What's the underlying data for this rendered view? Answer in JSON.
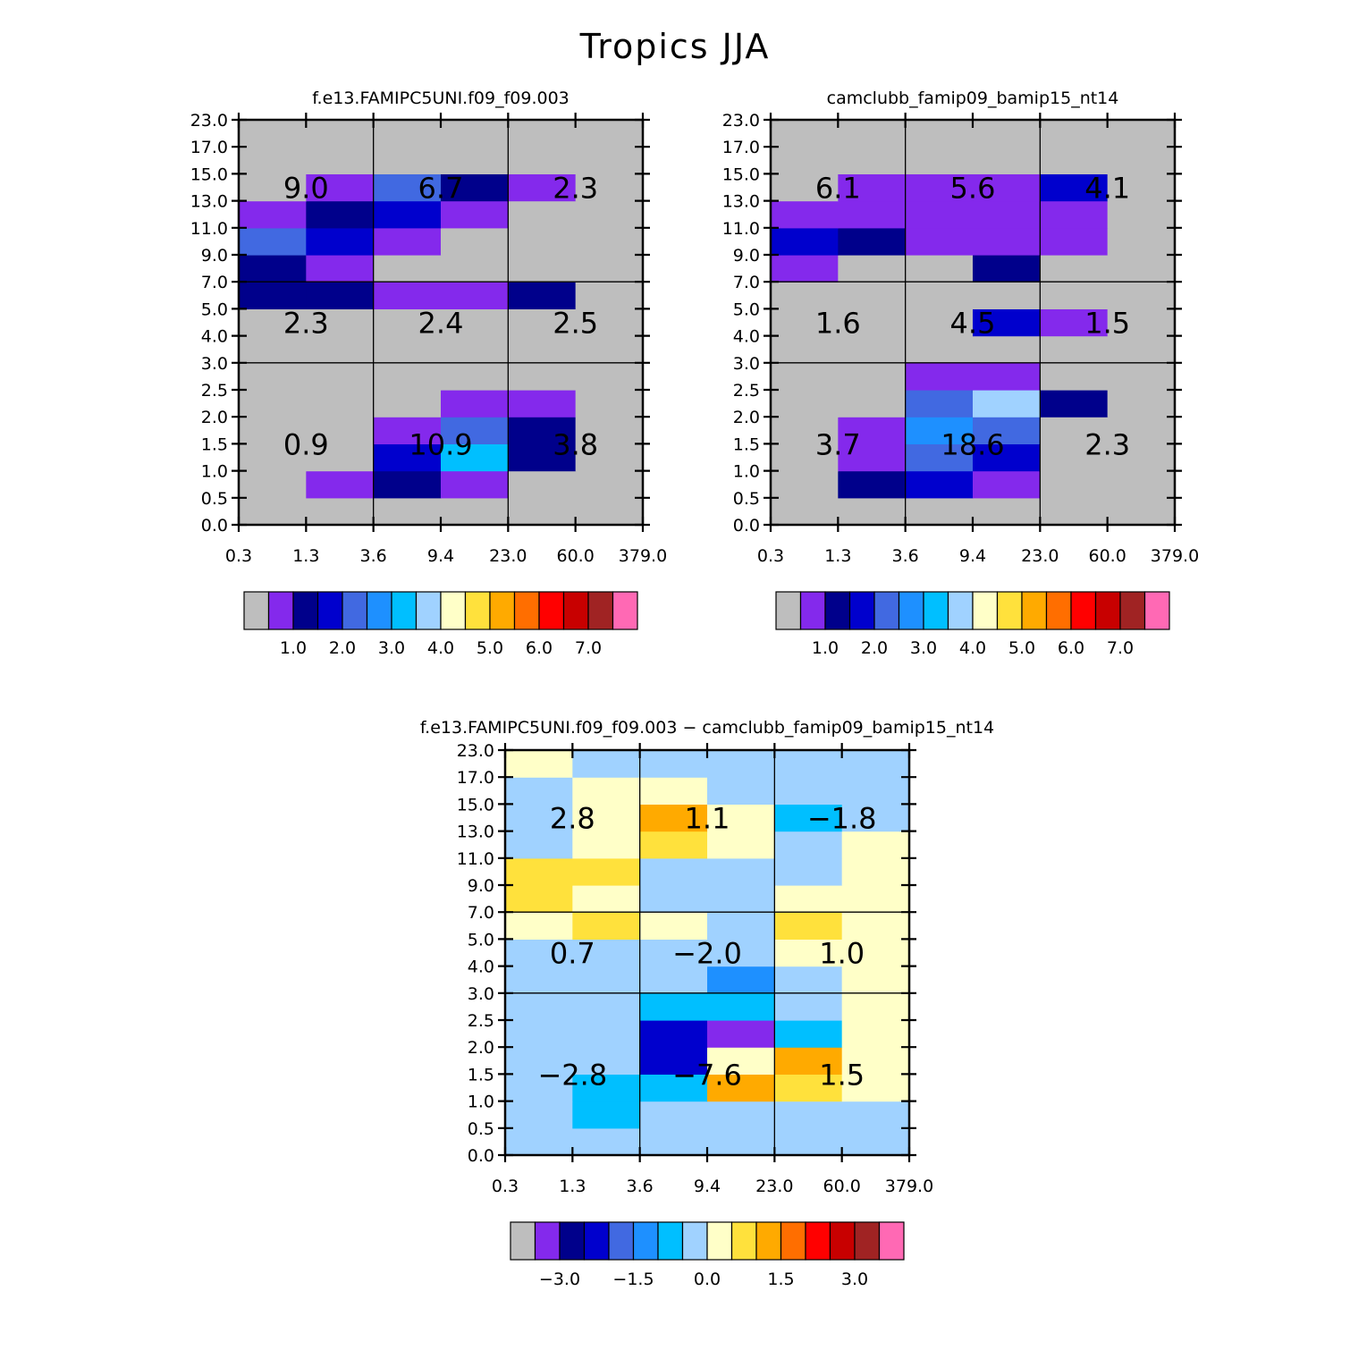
{
  "figure": {
    "title": "Tropics JJA"
  },
  "chart_data": [
    {
      "type": "heatmap",
      "title": "f.e13.FAMIPC5UNI.f09_f09.003",
      "x_tick_labels": [
        "0.3",
        "1.3",
        "3.6",
        "9.4",
        "23.0",
        "60.0",
        "379.0"
      ],
      "y_tick_labels": [
        "0.0",
        "0.5",
        "1.0",
        "1.5",
        "2.0",
        "2.5",
        "3.0",
        "4.0",
        "5.0",
        "7.0",
        "9.0",
        "11.0",
        "13.0",
        "15.0",
        "17.0",
        "23.0"
      ],
      "grid_values": [
        [
          0,
          0,
          0,
          0,
          0,
          0
        ],
        [
          0,
          1,
          2,
          1,
          0,
          0
        ],
        [
          0,
          0,
          3,
          6,
          2,
          0
        ],
        [
          0,
          0,
          1,
          4,
          2,
          0
        ],
        [
          0,
          0,
          0,
          1,
          1,
          0
        ],
        [
          0,
          0,
          0,
          0,
          0,
          0
        ],
        [
          0,
          0,
          0,
          0,
          0,
          0
        ],
        [
          0,
          0,
          0,
          0,
          0,
          0
        ],
        [
          2,
          2,
          1,
          1,
          2,
          0
        ],
        [
          2,
          1,
          0,
          0,
          0,
          0
        ],
        [
          4,
          3,
          1,
          0,
          0,
          0
        ],
        [
          1,
          2,
          3,
          1,
          0,
          0
        ],
        [
          0,
          1,
          4,
          2,
          1,
          0
        ],
        [
          0,
          0,
          0,
          0,
          0,
          0
        ],
        [
          0,
          0,
          0,
          0,
          0,
          0
        ]
      ],
      "section_totals": [
        {
          "col": 0,
          "row": 0,
          "value": "0.9"
        },
        {
          "col": 1,
          "row": 0,
          "value": "10.9"
        },
        {
          "col": 2,
          "row": 0,
          "value": "3.8"
        },
        {
          "col": 0,
          "row": 1,
          "value": "2.3"
        },
        {
          "col": 1,
          "row": 1,
          "value": "2.4"
        },
        {
          "col": 2,
          "row": 1,
          "value": "2.5"
        },
        {
          "col": 0,
          "row": 2,
          "value": "9.0"
        },
        {
          "col": 1,
          "row": 2,
          "value": "6.7"
        },
        {
          "col": 2,
          "row": 2,
          "value": "2.3"
        }
      ],
      "colorbar_labels": [
        "1.0",
        "2.0",
        "3.0",
        "4.0",
        "5.0",
        "6.0",
        "7.0"
      ]
    },
    {
      "type": "heatmap",
      "title": "camclubb_famip09_bamip15_nt14",
      "x_tick_labels": [
        "0.3",
        "1.3",
        "3.6",
        "9.4",
        "23.0",
        "60.0",
        "379.0"
      ],
      "y_tick_labels": [
        "0.0",
        "0.5",
        "1.0",
        "1.5",
        "2.0",
        "2.5",
        "3.0",
        "4.0",
        "5.0",
        "7.0",
        "9.0",
        "11.0",
        "13.0",
        "15.0",
        "17.0",
        "23.0"
      ],
      "grid_values": [
        [
          0,
          0,
          0,
          0,
          0,
          0
        ],
        [
          0,
          2,
          3,
          1,
          0,
          0
        ],
        [
          0,
          1,
          4,
          3,
          0,
          0
        ],
        [
          0,
          1,
          5,
          4,
          0,
          0
        ],
        [
          0,
          0,
          4,
          7,
          2,
          0
        ],
        [
          0,
          0,
          1,
          1,
          0,
          0
        ],
        [
          0,
          0,
          0,
          0,
          0,
          0
        ],
        [
          0,
          0,
          0,
          3,
          1,
          0
        ],
        [
          0,
          0,
          0,
          0,
          0,
          0
        ],
        [
          1,
          0,
          0,
          2,
          0,
          0
        ],
        [
          3,
          2,
          1,
          1,
          1,
          0
        ],
        [
          1,
          1,
          1,
          1,
          1,
          0
        ],
        [
          0,
          1,
          1,
          1,
          3,
          0
        ],
        [
          0,
          0,
          0,
          0,
          0,
          0
        ],
        [
          0,
          0,
          0,
          0,
          0,
          0
        ]
      ],
      "section_totals": [
        {
          "col": 0,
          "row": 0,
          "value": "3.7"
        },
        {
          "col": 1,
          "row": 0,
          "value": "18.6"
        },
        {
          "col": 2,
          "row": 0,
          "value": "2.3"
        },
        {
          "col": 0,
          "row": 1,
          "value": "1.6"
        },
        {
          "col": 1,
          "row": 1,
          "value": "4.5"
        },
        {
          "col": 2,
          "row": 1,
          "value": "1.5"
        },
        {
          "col": 0,
          "row": 2,
          "value": "6.1"
        },
        {
          "col": 1,
          "row": 2,
          "value": "5.6"
        },
        {
          "col": 2,
          "row": 2,
          "value": "4.1"
        }
      ],
      "colorbar_labels": [
        "1.0",
        "2.0",
        "3.0",
        "4.0",
        "5.0",
        "6.0",
        "7.0"
      ]
    },
    {
      "type": "heatmap",
      "title": "f.e13.FAMIPC5UNI.f09_f09.003 − camclubb_famip09_bamip15_nt14",
      "x_tick_labels": [
        "0.3",
        "1.3",
        "3.6",
        "9.4",
        "23.0",
        "60.0",
        "379.0"
      ],
      "y_tick_labels": [
        "0.0",
        "0.5",
        "1.0",
        "1.5",
        "2.0",
        "2.5",
        "3.0",
        "4.0",
        "5.0",
        "7.0",
        "9.0",
        "11.0",
        "13.0",
        "15.0",
        "17.0",
        "23.0"
      ],
      "grid_values": [
        [
          7,
          7,
          7,
          7,
          7,
          7
        ],
        [
          7,
          6,
          7,
          7,
          7,
          7
        ],
        [
          7,
          6,
          6,
          10,
          9,
          8
        ],
        [
          7,
          7,
          3,
          8,
          10,
          8
        ],
        [
          7,
          7,
          3,
          1,
          6,
          8
        ],
        [
          7,
          7,
          6,
          6,
          7,
          8
        ],
        [
          7,
          7,
          7,
          5,
          7,
          8
        ],
        [
          7,
          7,
          7,
          7,
          8,
          8
        ],
        [
          8,
          9,
          8,
          7,
          9,
          8
        ],
        [
          9,
          8,
          7,
          7,
          8,
          8
        ],
        [
          9,
          9,
          7,
          7,
          7,
          8
        ],
        [
          7,
          8,
          9,
          8,
          7,
          8
        ],
        [
          7,
          8,
          10,
          8,
          6,
          7
        ],
        [
          7,
          8,
          8,
          7,
          7,
          7
        ],
        [
          8,
          7,
          7,
          7,
          7,
          7
        ]
      ],
      "section_totals": [
        {
          "col": 0,
          "row": 0,
          "value": "−2.8"
        },
        {
          "col": 1,
          "row": 0,
          "value": "−7.6"
        },
        {
          "col": 2,
          "row": 0,
          "value": "1.5"
        },
        {
          "col": 0,
          "row": 1,
          "value": "0.7"
        },
        {
          "col": 1,
          "row": 1,
          "value": "−2.0"
        },
        {
          "col": 2,
          "row": 1,
          "value": "1.0"
        },
        {
          "col": 0,
          "row": 2,
          "value": "2.8"
        },
        {
          "col": 1,
          "row": 2,
          "value": "1.1"
        },
        {
          "col": 2,
          "row": 2,
          "value": "−1.8"
        }
      ],
      "colorbar_labels": [
        "−3.0",
        "−1.5",
        "0.0",
        "1.5",
        "3.0"
      ]
    }
  ],
  "palette": [
    "#bebebe",
    "#8429ec",
    "#00008b",
    "#0000cd",
    "#4169e1",
    "#1e90ff",
    "#00bfff",
    "#a0d2ff",
    "#ffffc8",
    "#ffe13c",
    "#ffaa00",
    "#ff6e00",
    "#ff0000",
    "#c80000",
    "#a02323",
    "#ff69b4"
  ]
}
